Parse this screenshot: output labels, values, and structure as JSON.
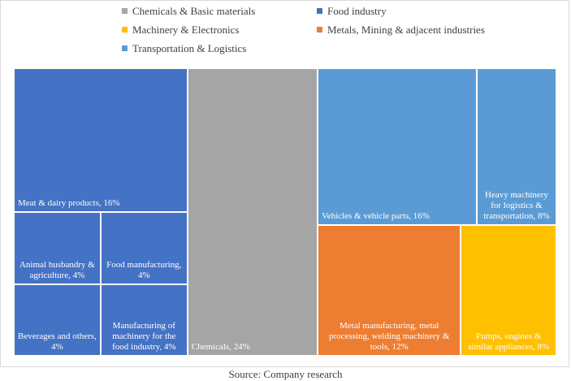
{
  "chart_data": {
    "type": "treemap",
    "groups": [
      {
        "name": "Chemicals & Basic materials",
        "color": "#a5a5a5",
        "leaves": [
          {
            "label": "Chemicals, 24%",
            "value": 24
          }
        ]
      },
      {
        "name": "Food industry",
        "color": "#4472c4",
        "leaves": [
          {
            "label": "Meat & dairy products, 16%",
            "value": 16
          },
          {
            "label": "Animal husbandry & agriculture, 4%",
            "value": 4
          },
          {
            "label": "Food manufacturing, 4%",
            "value": 4
          },
          {
            "label": "Beverages and others, 4%",
            "value": 4
          },
          {
            "label": "Manufacturing of machinery for the food industry, 4%",
            "value": 4
          }
        ]
      },
      {
        "name": "Machinery & Electronics",
        "color": "#ffc000",
        "leaves": [
          {
            "label": "Pumps, engines & similar appliances, 8%",
            "value": 8
          }
        ]
      },
      {
        "name": "Metals, Mining & adjacent industries",
        "color": "#ed7d31",
        "leaves": [
          {
            "label": "Metal manufacturing, metal processing, welding machinery & tools, 12%",
            "value": 12
          }
        ]
      },
      {
        "name": "Transportation & Logistics",
        "color": "#5b9bd5",
        "leaves": [
          {
            "label": "Vehicles & vehicle parts, 16%",
            "value": 16
          },
          {
            "label": "Heavy machinery for logistics & transportation, 8%",
            "value": 8
          }
        ]
      }
    ],
    "source": "Source: Company research"
  }
}
